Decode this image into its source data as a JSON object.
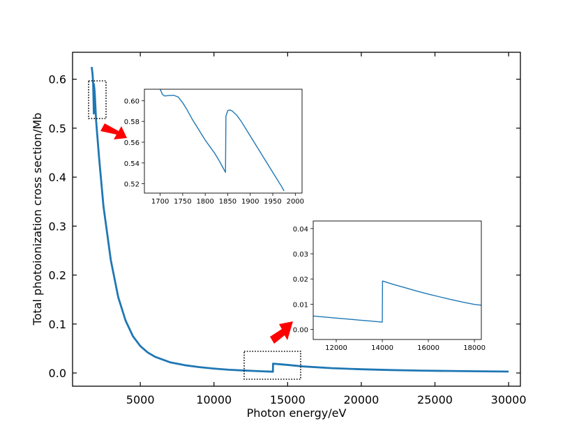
{
  "chart_data": [
    {
      "type": "line",
      "title": "",
      "xlabel": "Photon energy/eV",
      "ylabel": "Total photoionization cross section/Mb",
      "xlim": [
        400,
        30800
      ],
      "ylim": [
        -0.027,
        0.655
      ],
      "xticks": [
        5000,
        10000,
        15000,
        20000,
        25000,
        30000
      ],
      "xtick_labels": [
        "5000",
        "10000",
        "15000",
        "20000",
        "25000",
        "30000"
      ],
      "yticks": [
        0.0,
        0.1,
        0.2,
        0.3,
        0.4,
        0.5,
        0.6
      ],
      "ytick_labels": [
        "0.0",
        "0.1",
        "0.2",
        "0.3",
        "0.4",
        "0.5",
        "0.6"
      ],
      "grid": false,
      "series": [
        {
          "color": "#1f77b4",
          "points": [
            [
              1700,
              0.625
            ],
            [
              1760,
              0.61
            ],
            [
              1800,
              0.59
            ],
            [
              1845,
              0.53
            ],
            [
              1846,
              0.59
            ],
            [
              1900,
              0.575
            ],
            [
              2000,
              0.515
            ],
            [
              2200,
              0.44
            ],
            [
              2500,
              0.34
            ],
            [
              3000,
              0.23
            ],
            [
              3500,
              0.155
            ],
            [
              4000,
              0.107
            ],
            [
              4500,
              0.075
            ],
            [
              5000,
              0.055
            ],
            [
              5500,
              0.042
            ],
            [
              6000,
              0.033
            ],
            [
              7000,
              0.022
            ],
            [
              8000,
              0.016
            ],
            [
              9000,
              0.012
            ],
            [
              10000,
              0.009
            ],
            [
              11000,
              0.0066
            ],
            [
              12000,
              0.0051
            ],
            [
              13000,
              0.0038
            ],
            [
              14000,
              0.0026
            ],
            [
              14010,
              0.019
            ],
            [
              15000,
              0.0165
            ],
            [
              16000,
              0.0135
            ],
            [
              18000,
              0.0098
            ],
            [
              20000,
              0.0076
            ],
            [
              22000,
              0.006
            ],
            [
              24000,
              0.0049
            ],
            [
              26000,
              0.0041
            ],
            [
              28000,
              0.0034
            ],
            [
              30000,
              0.0029
            ]
          ]
        }
      ]
    },
    {
      "type": "line",
      "title": "",
      "xlabel": "",
      "ylabel": "",
      "xlim": [
        1665,
        2015
      ],
      "ylim": [
        0.511,
        0.611
      ],
      "xticks": [
        1700,
        1750,
        1800,
        1850,
        1900,
        1950,
        2000
      ],
      "xtick_labels": [
        "1700",
        "1750",
        "1800",
        "1850",
        "1900",
        "1950",
        "2000"
      ],
      "yticks": [
        0.52,
        0.54,
        0.56,
        0.58,
        0.6
      ],
      "ytick_labels": [
        "0.52",
        "0.54",
        "0.56",
        "0.58",
        "0.60"
      ],
      "series": [
        {
          "color": "#1f77b4",
          "points": [
            [
              1700,
              0.611
            ],
            [
              1705,
              0.606
            ],
            [
              1710,
              0.6045
            ],
            [
              1720,
              0.605
            ],
            [
              1730,
              0.6052
            ],
            [
              1740,
              0.6035
            ],
            [
              1750,
              0.598
            ],
            [
              1760,
              0.591
            ],
            [
              1770,
              0.583
            ],
            [
              1780,
              0.576
            ],
            [
              1790,
              0.569
            ],
            [
              1800,
              0.562
            ],
            [
              1810,
              0.556
            ],
            [
              1820,
              0.55
            ],
            [
              1830,
              0.543
            ],
            [
              1840,
              0.535
            ],
            [
              1845,
              0.531
            ],
            [
              1846,
              0.585
            ],
            [
              1850,
              0.5905
            ],
            [
              1855,
              0.591
            ],
            [
              1860,
              0.59
            ],
            [
              1870,
              0.586
            ],
            [
              1880,
              0.58
            ],
            [
              1890,
              0.573
            ],
            [
              1900,
              0.566
            ],
            [
              1910,
              0.559
            ],
            [
              1920,
              0.552
            ],
            [
              1930,
              0.545
            ],
            [
              1940,
              0.538
            ],
            [
              1950,
              0.531
            ],
            [
              1960,
              0.524
            ],
            [
              1970,
              0.517
            ],
            [
              1975,
              0.513
            ]
          ]
        }
      ]
    },
    {
      "type": "line",
      "title": "",
      "xlabel": "",
      "ylabel": "",
      "xlim": [
        11000,
        18300
      ],
      "ylim": [
        -0.004,
        0.043
      ],
      "xticks": [
        12000,
        14000,
        16000,
        18000
      ],
      "xtick_labels": [
        "12000",
        "14000",
        "16000",
        "18000"
      ],
      "yticks": [
        0.0,
        0.01,
        0.02,
        0.03,
        0.04
      ],
      "ytick_labels": [
        "0.00",
        "0.01",
        "0.02",
        "0.03",
        "0.04"
      ],
      "series": [
        {
          "color": "#1f77b4",
          "points": [
            [
              11000,
              0.0053
            ],
            [
              11500,
              0.0049
            ],
            [
              12000,
              0.0045
            ],
            [
              12500,
              0.0041
            ],
            [
              13000,
              0.0037
            ],
            [
              13500,
              0.0033
            ],
            [
              13990,
              0.0029
            ],
            [
              14000,
              0.0029
            ],
            [
              14010,
              0.0192
            ],
            [
              14500,
              0.0178
            ],
            [
              15000,
              0.0165
            ],
            [
              15500,
              0.0152
            ],
            [
              16000,
              0.014
            ],
            [
              16500,
              0.0129
            ],
            [
              17000,
              0.0118
            ],
            [
              17500,
              0.0108
            ],
            [
              18000,
              0.0099
            ],
            [
              18300,
              0.0096
            ]
          ]
        }
      ]
    }
  ],
  "colors": {
    "line": "#1f77b4",
    "arrow": "#ff0000",
    "axes": "#000000"
  }
}
